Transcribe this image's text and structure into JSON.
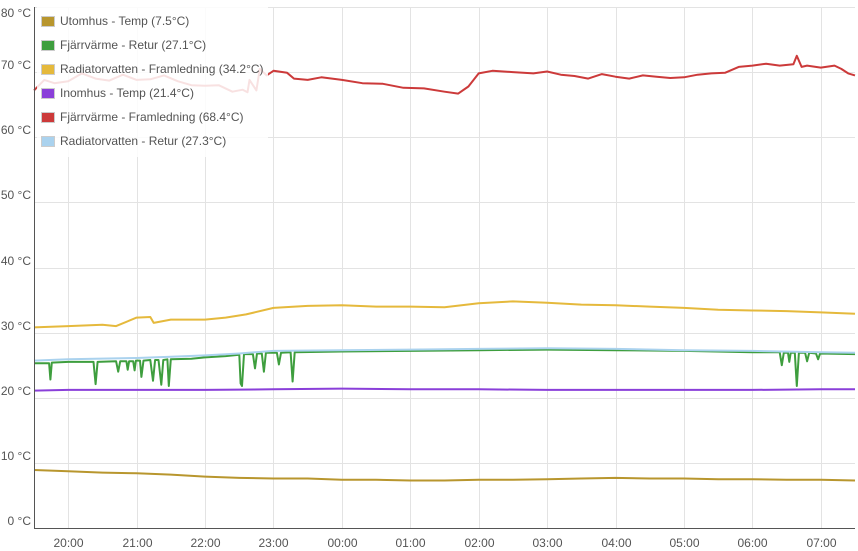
{
  "chart_data": {
    "type": "line",
    "title": "",
    "xlabel": "",
    "ylabel": "",
    "ylim": [
      0,
      80
    ],
    "yticks": [
      0,
      10,
      20,
      30,
      40,
      50,
      60,
      70,
      80
    ],
    "ytick_labels": [
      "0 °C",
      "10 °C",
      "20 °C",
      "30 °C",
      "40 °C",
      "50 °C",
      "60 °C",
      "70 °C",
      "80 °C"
    ],
    "xlim": [
      19.5,
      31.5
    ],
    "xtick_labels": [
      "20:00",
      "21:00",
      "22:00",
      "23:00",
      "00:00",
      "01:00",
      "02:00",
      "03:00",
      "04:00",
      "05:00",
      "06:00",
      "07:00"
    ],
    "xtick_hours": [
      20,
      21,
      22,
      23,
      24,
      25,
      26,
      27,
      28,
      29,
      30,
      31
    ],
    "grid": true,
    "legend_position": "top-left",
    "series": [
      {
        "name": "Utomhus - Temp (7.5°C)",
        "color": "#b8962e",
        "points": [
          [
            19.5,
            8.9
          ],
          [
            20.0,
            8.7
          ],
          [
            20.5,
            8.5
          ],
          [
            21.0,
            8.4
          ],
          [
            21.5,
            8.2
          ],
          [
            22.0,
            7.9
          ],
          [
            22.5,
            7.7
          ],
          [
            23.0,
            7.6
          ],
          [
            23.5,
            7.6
          ],
          [
            24.0,
            7.4
          ],
          [
            24.5,
            7.4
          ],
          [
            25.0,
            7.3
          ],
          [
            25.5,
            7.3
          ],
          [
            26.0,
            7.4
          ],
          [
            26.5,
            7.4
          ],
          [
            27.0,
            7.5
          ],
          [
            27.5,
            7.6
          ],
          [
            28.0,
            7.7
          ],
          [
            28.5,
            7.6
          ],
          [
            29.0,
            7.6
          ],
          [
            29.5,
            7.5
          ],
          [
            30.0,
            7.5
          ],
          [
            30.5,
            7.4
          ],
          [
            31.0,
            7.4
          ],
          [
            31.5,
            7.3
          ]
        ]
      },
      {
        "name": "Fjärrvärme - Retur (27.1°C)",
        "color": "#3e9e3e",
        "points": [
          [
            19.5,
            25.3
          ],
          [
            19.72,
            25.3
          ],
          [
            19.74,
            22.8
          ],
          [
            19.76,
            25.4
          ],
          [
            20.0,
            25.5
          ],
          [
            20.37,
            25.5
          ],
          [
            20.4,
            22.1
          ],
          [
            20.43,
            25.5
          ],
          [
            20.7,
            25.6
          ],
          [
            20.73,
            24.0
          ],
          [
            20.76,
            25.6
          ],
          [
            20.85,
            25.6
          ],
          [
            20.87,
            24.3
          ],
          [
            20.89,
            25.6
          ],
          [
            20.95,
            25.6
          ],
          [
            20.97,
            24.2
          ],
          [
            20.99,
            25.7
          ],
          [
            21.05,
            25.7
          ],
          [
            21.07,
            23.2
          ],
          [
            21.1,
            25.7
          ],
          [
            21.2,
            25.8
          ],
          [
            21.24,
            22.6
          ],
          [
            21.27,
            25.8
          ],
          [
            21.32,
            25.8
          ],
          [
            21.36,
            22.0
          ],
          [
            21.39,
            25.8
          ],
          [
            21.45,
            25.9
          ],
          [
            21.47,
            21.8
          ],
          [
            21.5,
            25.9
          ],
          [
            21.8,
            26.0
          ],
          [
            22.0,
            26.2
          ],
          [
            22.3,
            26.4
          ],
          [
            22.5,
            26.6
          ],
          [
            22.52,
            22.2
          ],
          [
            22.54,
            21.8
          ],
          [
            22.57,
            26.7
          ],
          [
            22.7,
            26.7
          ],
          [
            22.73,
            24.5
          ],
          [
            22.76,
            26.8
          ],
          [
            22.83,
            26.8
          ],
          [
            22.86,
            24.0
          ],
          [
            22.89,
            26.9
          ],
          [
            23.05,
            26.9
          ],
          [
            23.08,
            25.1
          ],
          [
            23.11,
            26.9
          ],
          [
            23.25,
            27.0
          ],
          [
            23.28,
            22.5
          ],
          [
            23.31,
            27.0
          ],
          [
            24.0,
            27.1
          ],
          [
            25.0,
            27.2
          ],
          [
            26.0,
            27.3
          ],
          [
            27.0,
            27.4
          ],
          [
            28.0,
            27.3
          ],
          [
            29.0,
            27.2
          ],
          [
            30.0,
            27.0
          ],
          [
            30.4,
            27.0
          ],
          [
            30.43,
            25.0
          ],
          [
            30.46,
            26.9
          ],
          [
            30.52,
            26.9
          ],
          [
            30.54,
            25.5
          ],
          [
            30.56,
            26.9
          ],
          [
            30.62,
            26.9
          ],
          [
            30.65,
            21.8
          ],
          [
            30.68,
            26.9
          ],
          [
            30.77,
            26.9
          ],
          [
            30.8,
            25.6
          ],
          [
            30.83,
            26.9
          ],
          [
            30.93,
            26.8
          ],
          [
            30.96,
            25.9
          ],
          [
            30.99,
            26.8
          ],
          [
            31.5,
            26.7
          ]
        ]
      },
      {
        "name": "Radiatorvatten - Framledning (34.2°C)",
        "color": "#e5b93c",
        "points": [
          [
            19.5,
            30.8
          ],
          [
            20.0,
            31.0
          ],
          [
            20.5,
            31.2
          ],
          [
            20.7,
            31.0
          ],
          [
            21.0,
            32.3
          ],
          [
            21.2,
            32.4
          ],
          [
            21.25,
            31.5
          ],
          [
            21.5,
            32.0
          ],
          [
            22.0,
            32.0
          ],
          [
            22.3,
            32.3
          ],
          [
            22.6,
            32.8
          ],
          [
            23.0,
            33.8
          ],
          [
            23.5,
            34.1
          ],
          [
            24.0,
            34.2
          ],
          [
            24.5,
            34.0
          ],
          [
            25.0,
            34.0
          ],
          [
            25.5,
            33.9
          ],
          [
            26.0,
            34.5
          ],
          [
            26.5,
            34.8
          ],
          [
            27.0,
            34.6
          ],
          [
            27.5,
            34.3
          ],
          [
            28.0,
            34.2
          ],
          [
            28.5,
            34.0
          ],
          [
            29.0,
            33.8
          ],
          [
            29.5,
            33.5
          ],
          [
            30.0,
            33.4
          ],
          [
            30.5,
            33.3
          ],
          [
            31.0,
            33.1
          ],
          [
            31.5,
            32.9
          ]
        ]
      },
      {
        "name": "Inomhus - Temp (21.4°C)",
        "color": "#8a3fd9",
        "points": [
          [
            19.5,
            21.1
          ],
          [
            20.0,
            21.2
          ],
          [
            21.0,
            21.2
          ],
          [
            22.0,
            21.2
          ],
          [
            23.0,
            21.3
          ],
          [
            24.0,
            21.4
          ],
          [
            25.0,
            21.3
          ],
          [
            26.0,
            21.3
          ],
          [
            27.0,
            21.2
          ],
          [
            28.0,
            21.2
          ],
          [
            29.0,
            21.2
          ],
          [
            30.0,
            21.2
          ],
          [
            31.0,
            21.3
          ],
          [
            31.5,
            21.3
          ]
        ]
      },
      {
        "name": "Fjärrvärme - Framledning (68.4°C)",
        "color": "#cc3a3a",
        "points": [
          [
            19.5,
            67.2
          ],
          [
            19.65,
            68.8
          ],
          [
            19.8,
            68.3
          ],
          [
            20.0,
            68.6
          ],
          [
            20.2,
            69.8
          ],
          [
            20.4,
            69.0
          ],
          [
            20.6,
            68.7
          ],
          [
            20.8,
            69.6
          ],
          [
            21.0,
            68.8
          ],
          [
            21.2,
            68.9
          ],
          [
            21.4,
            69.5
          ],
          [
            21.6,
            68.6
          ],
          [
            21.8,
            68.0
          ],
          [
            22.0,
            67.9
          ],
          [
            22.2,
            68.0
          ],
          [
            22.4,
            67.0
          ],
          [
            22.55,
            67.3
          ],
          [
            22.62,
            66.9
          ],
          [
            22.65,
            68.8
          ],
          [
            22.75,
            67.2
          ],
          [
            22.8,
            70.5
          ],
          [
            22.9,
            69.5
          ],
          [
            23.0,
            70.2
          ],
          [
            23.2,
            69.9
          ],
          [
            23.3,
            69.0
          ],
          [
            23.5,
            68.8
          ],
          [
            23.7,
            69.2
          ],
          [
            24.0,
            68.8
          ],
          [
            24.3,
            68.3
          ],
          [
            24.6,
            68.2
          ],
          [
            24.9,
            67.6
          ],
          [
            25.2,
            67.5
          ],
          [
            25.5,
            67.0
          ],
          [
            25.7,
            66.7
          ],
          [
            25.85,
            67.8
          ],
          [
            26.0,
            69.8
          ],
          [
            26.2,
            70.2
          ],
          [
            26.5,
            70.0
          ],
          [
            26.8,
            69.8
          ],
          [
            27.0,
            70.1
          ],
          [
            27.2,
            69.6
          ],
          [
            27.4,
            69.4
          ],
          [
            27.6,
            69.0
          ],
          [
            27.8,
            69.7
          ],
          [
            28.0,
            69.3
          ],
          [
            28.2,
            69.0
          ],
          [
            28.4,
            69.5
          ],
          [
            28.6,
            69.3
          ],
          [
            28.8,
            69.1
          ],
          [
            29.0,
            69.2
          ],
          [
            29.2,
            69.6
          ],
          [
            29.4,
            69.8
          ],
          [
            29.6,
            69.9
          ],
          [
            29.8,
            70.8
          ],
          [
            30.0,
            71.0
          ],
          [
            30.2,
            71.3
          ],
          [
            30.4,
            71.0
          ],
          [
            30.6,
            71.2
          ],
          [
            30.65,
            72.5
          ],
          [
            30.72,
            70.8
          ],
          [
            30.8,
            71.0
          ],
          [
            31.0,
            70.7
          ],
          [
            31.2,
            71.0
          ],
          [
            31.3,
            70.5
          ],
          [
            31.4,
            69.8
          ],
          [
            31.5,
            69.5
          ]
        ]
      },
      {
        "name": "Radiatorvatten - Retur (27.3°C)",
        "color": "#aad2ee",
        "points": [
          [
            19.5,
            25.7
          ],
          [
            20.0,
            25.9
          ],
          [
            21.0,
            26.1
          ],
          [
            21.5,
            26.3
          ],
          [
            22.0,
            26.5
          ],
          [
            22.5,
            26.8
          ],
          [
            23.0,
            27.2
          ],
          [
            24.0,
            27.3
          ],
          [
            25.0,
            27.4
          ],
          [
            26.0,
            27.5
          ],
          [
            27.0,
            27.6
          ],
          [
            28.0,
            27.5
          ],
          [
            29.0,
            27.3
          ],
          [
            30.0,
            27.2
          ],
          [
            31.0,
            27.0
          ],
          [
            31.5,
            26.9
          ]
        ]
      }
    ]
  }
}
